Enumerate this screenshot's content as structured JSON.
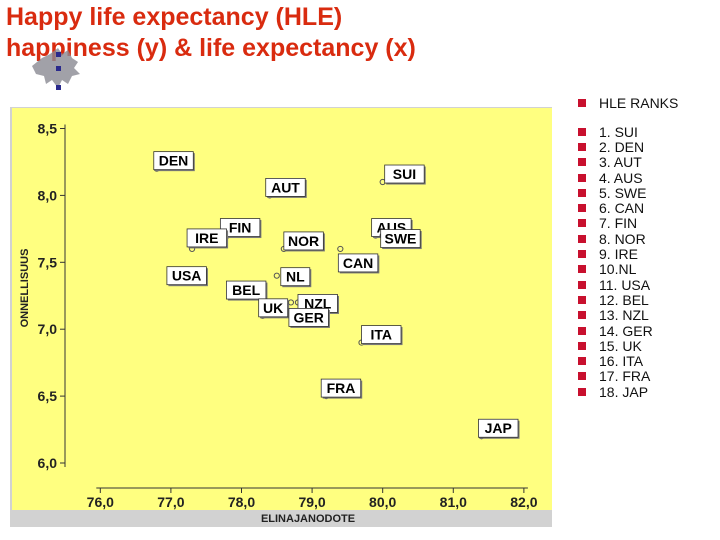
{
  "title_line1": "Happy life expectancy (HLE)",
  "title_line2": "happiness (y) & life expectancy (x)",
  "colors": {
    "title": "#d92b0f",
    "plot_background": "#ffff80",
    "axis_tick_labels": "#222222",
    "legend_bullet": "#c8102e"
  },
  "legend": {
    "heading": "HLE RANKS",
    "items": [
      "1.  SUI",
      "2.  DEN",
      "3.  AUT",
      "4.  AUS",
      "5.  SWE",
      "6.  CAN",
      "7.  FIN",
      "8.  NOR",
      "9.  IRE",
      "10.NL",
      "11. USA",
      "12. BEL",
      "13. NZL",
      "14. GER",
      "15. UK",
      "16. ITA",
      "17. FRA",
      "18. JAP"
    ]
  },
  "chart_data": {
    "type": "scatter",
    "xlabel": "ELINAJANODOTE",
    "ylabel": "ONNELLISUUS",
    "xlim": [
      75.5,
      82.2
    ],
    "ylim": [
      5.9,
      8.6
    ],
    "x_ticks": [
      76,
      77,
      78,
      79,
      80,
      81,
      82
    ],
    "x_tick_labels": [
      "76,0",
      "77,0",
      "78,0",
      "79,0",
      "80,0",
      "81,0",
      "82,0"
    ],
    "y_ticks": [
      6.0,
      6.5,
      7.0,
      7.5,
      8.0,
      8.5
    ],
    "y_tick_labels": [
      "6,0",
      "6,5",
      "7,0",
      "7,5",
      "8,0",
      "8,5"
    ],
    "grid": false,
    "points": [
      {
        "label": "DEN",
        "x": 76.8,
        "y": 8.2
      },
      {
        "label": "SUI",
        "x": 80.0,
        "y": 8.1
      },
      {
        "label": "AUT",
        "x": 78.4,
        "y": 8.0
      },
      {
        "label": "FIN",
        "x": 77.8,
        "y": 7.7
      },
      {
        "label": "AUS",
        "x": 79.9,
        "y": 7.7
      },
      {
        "label": "NOR",
        "x": 78.6,
        "y": 7.6
      },
      {
        "label": "SWE",
        "x": 80.0,
        "y": 7.7
      },
      {
        "label": "CAN",
        "x": 79.4,
        "y": 7.6
      },
      {
        "label": "IRE",
        "x": 77.3,
        "y": 7.6
      },
      {
        "label": "USA",
        "x": 77.0,
        "y": 7.4
      },
      {
        "label": "BEL",
        "x": 77.9,
        "y": 7.3
      },
      {
        "label": "NL",
        "x": 78.5,
        "y": 7.4
      },
      {
        "label": "NZL",
        "x": 78.8,
        "y": 7.2
      },
      {
        "label": "UK",
        "x": 78.3,
        "y": 7.1
      },
      {
        "label": "GER",
        "x": 78.7,
        "y": 7.2
      },
      {
        "label": "ITA",
        "x": 79.7,
        "y": 6.9
      },
      {
        "label": "FRA",
        "x": 79.2,
        "y": 6.5
      },
      {
        "label": "JAP",
        "x": 81.4,
        "y": 6.2
      }
    ]
  }
}
